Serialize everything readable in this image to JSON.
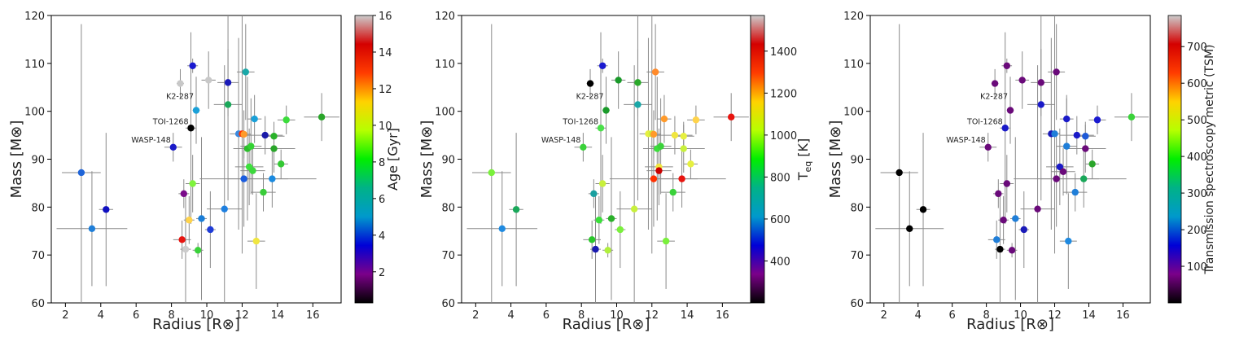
{
  "chart_data": [
    {
      "type": "scatter",
      "xlabel": "Radius [R⊗]",
      "ylabel": "Mass [M⊗]",
      "xlim": [
        1.2,
        17.6
      ],
      "ylim": [
        60,
        120
      ],
      "xticks": [
        2,
        4,
        6,
        8,
        10,
        12,
        14,
        16
      ],
      "yticks": [
        60,
        70,
        80,
        90,
        100,
        110,
        120
      ],
      "grid": false,
      "colorbar": {
        "label": "Age [Gyr]",
        "colormap": "nipy_spectral",
        "range": [
          0.3,
          16
        ],
        "ticks": [
          2,
          4,
          6,
          8,
          10,
          12,
          14,
          16
        ],
        "gradient": [
          "#000000",
          "#7b0089",
          "#0000d6",
          "#0099cc",
          "#00b288",
          "#00ee00",
          "#b6ff00",
          "#ffd200",
          "#ff3c00",
          "#d40000",
          "#cccccc"
        ]
      },
      "annotations": [
        {
          "text": "K2-287",
          "x": 9.4,
          "y": 101.7
        },
        {
          "text": "TOI-1268",
          "x": 9.1,
          "y": 96.5
        },
        {
          "text": "WASP-148",
          "x": 8.1,
          "y": 92.6
        }
      ],
      "points": [
        {
          "x": 2.9,
          "y": 87.2,
          "xerr": 1.1,
          "yerr": 31,
          "color": "#1f64d8"
        },
        {
          "x": 3.5,
          "y": 75.5,
          "xerr": 2.0,
          "yerr": 12,
          "color": "#1f7ed8"
        },
        {
          "x": 4.3,
          "y": 79.5,
          "xerr": 0.4,
          "yerr": 16,
          "color": "#0f0fc0"
        },
        {
          "x": 8.1,
          "y": 92.5,
          "xerr": 0.5,
          "yerr": 3.0,
          "color": "#1a1ac8"
        },
        {
          "x": 8.5,
          "y": 105.8,
          "xerr": 0.2,
          "yerr": 3.0,
          "color": "#c8c8c8"
        },
        {
          "x": 8.6,
          "y": 73.2,
          "xerr": 0.5,
          "yerr": 4.0,
          "color": "#e8140f"
        },
        {
          "x": 8.7,
          "y": 82.8,
          "xerr": 0.3,
          "yerr": 3.0,
          "color": "#7a0a8a"
        },
        {
          "x": 8.8,
          "y": 71.2,
          "xerr": 0.3,
          "yerr": 12,
          "color": "#cccccc"
        },
        {
          "x": 9.0,
          "y": 77.3,
          "xerr": 0.3,
          "yerr": 5.0,
          "color": "#ffd34a"
        },
        {
          "x": 9.1,
          "y": 96.5,
          "xerr": 0.3,
          "yerr": 20,
          "color": "#000000"
        },
        {
          "x": 9.2,
          "y": 84.9,
          "xerr": 0.4,
          "yerr": 6.0,
          "color": "#7ff33c"
        },
        {
          "x": 9.2,
          "y": 109.5,
          "xerr": 0.3,
          "yerr": 1.5,
          "color": "#1a1ad0"
        },
        {
          "x": 9.4,
          "y": 100.2,
          "xerr": 0.2,
          "yerr": 7.0,
          "color": "#1aa0d8"
        },
        {
          "x": 9.5,
          "y": 71.0,
          "xerr": 0.3,
          "yerr": 1.5,
          "color": "#3ad23a"
        },
        {
          "x": 9.7,
          "y": 77.6,
          "xerr": 0.3,
          "yerr": 17,
          "color": "#1a7ed8"
        },
        {
          "x": 10.1,
          "y": 106.5,
          "xerr": 0.4,
          "yerr": 6.0,
          "color": "#c8c8c8"
        },
        {
          "x": 10.2,
          "y": 75.3,
          "xerr": 0.3,
          "yerr": 8.0,
          "color": "#1f3cd8"
        },
        {
          "x": 11.0,
          "y": 79.6,
          "xerr": 1.0,
          "yerr": 30,
          "color": "#1f80e0"
        },
        {
          "x": 11.2,
          "y": 106.0,
          "xerr": 0.6,
          "yerr": 7.0,
          "color": "#1a1ab8"
        },
        {
          "x": 11.2,
          "y": 101.4,
          "xerr": 0.8,
          "yerr": 20,
          "color": "#1aa85a"
        },
        {
          "x": 11.8,
          "y": 95.3,
          "xerr": 0.5,
          "yerr": 20,
          "color": "#3a8ae0"
        },
        {
          "x": 12.0,
          "y": 95.3,
          "xerr": 0.3,
          "yerr": 25,
          "color": "#ff3000"
        },
        {
          "x": 12.1,
          "y": 95.2,
          "xerr": 0.4,
          "yerr": 5.0,
          "color": "#ff9a2a"
        },
        {
          "x": 12.1,
          "y": 85.9,
          "xerr": 2.5,
          "yerr": 10,
          "color": "#1a5ce0"
        },
        {
          "x": 12.2,
          "y": 108.2,
          "xerr": 0.5,
          "yerr": 10,
          "color": "#1aa8a8"
        },
        {
          "x": 12.3,
          "y": 92.2,
          "xerr": 0.8,
          "yerr": 15,
          "color": "#2abe2a"
        },
        {
          "x": 12.4,
          "y": 88.4,
          "xerr": 0.8,
          "yerr": 8.0,
          "color": "#3ce13c"
        },
        {
          "x": 12.5,
          "y": 92.7,
          "xerr": 0.6,
          "yerr": 10,
          "color": "#33d233"
        },
        {
          "x": 12.6,
          "y": 87.6,
          "xerr": 0.7,
          "yerr": 5.0,
          "color": "#3cd83c"
        },
        {
          "x": 12.7,
          "y": 98.4,
          "xerr": 0.4,
          "yerr": 5.0,
          "color": "#1aa0d8"
        },
        {
          "x": 12.8,
          "y": 72.9,
          "xerr": 0.5,
          "yerr": 10,
          "color": "#f0e640"
        },
        {
          "x": 13.2,
          "y": 83.1,
          "xerr": 0.7,
          "yerr": 4.0,
          "color": "#3acd3a"
        },
        {
          "x": 13.3,
          "y": 95.0,
          "xerr": 1.0,
          "yerr": 4.0,
          "color": "#1a1aa8"
        },
        {
          "x": 13.7,
          "y": 85.9,
          "xerr": 2.5,
          "yerr": 6.0,
          "color": "#1a8ae0"
        },
        {
          "x": 13.8,
          "y": 94.8,
          "xerr": 0.6,
          "yerr": 3.0,
          "color": "#2ab22a"
        },
        {
          "x": 13.8,
          "y": 92.2,
          "xerr": 1.2,
          "yerr": 5.0,
          "color": "#2aa52a"
        },
        {
          "x": 14.2,
          "y": 89.0,
          "xerr": 0.4,
          "yerr": 3.0,
          "color": "#33c833"
        },
        {
          "x": 14.5,
          "y": 98.2,
          "xerr": 0.5,
          "yerr": 3.0,
          "color": "#3cdc3c"
        },
        {
          "x": 16.5,
          "y": 98.8,
          "xerr": 1.0,
          "yerr": 5.0,
          "color": "#2aa52a"
        }
      ]
    },
    {
      "type": "scatter",
      "xlabel": "Radius [R⊗]",
      "ylabel": "Mass [M⊗]",
      "xlim": [
        1.2,
        17.6
      ],
      "ylim": [
        60,
        120
      ],
      "xticks": [
        2,
        4,
        6,
        8,
        10,
        12,
        14,
        16
      ],
      "yticks": [
        60,
        70,
        80,
        90,
        100,
        110,
        120
      ],
      "grid": false,
      "colorbar": {
        "label": "T",
        "label_sub": "eq",
        "label_unit": " [K]",
        "colormap": "nipy_spectral",
        "range": [
          200,
          1570
        ],
        "ticks": [
          400,
          600,
          800,
          1000,
          1200,
          1400
        ],
        "gradient": [
          "#000000",
          "#7b0089",
          "#0000d6",
          "#0099cc",
          "#00b288",
          "#00ee00",
          "#b6ff00",
          "#ffd200",
          "#ff3c00",
          "#d40000",
          "#cccccc"
        ]
      },
      "annotations": [
        {
          "text": "K2-287",
          "x": 9.4,
          "y": 101.7
        },
        {
          "text": "TOI-1268",
          "x": 9.1,
          "y": 96.5
        },
        {
          "text": "WASP-148",
          "x": 8.1,
          "y": 92.6
        }
      ],
      "points": [
        {
          "x": 2.9,
          "y": 87.2,
          "xerr": 1.1,
          "yerr": 31,
          "color": "#7af03c"
        },
        {
          "x": 3.5,
          "y": 75.5,
          "xerr": 2.0,
          "yerr": 12,
          "color": "#1f8ae0"
        },
        {
          "x": 4.3,
          "y": 79.5,
          "xerr": 0.4,
          "yerr": 16,
          "color": "#1aa85a"
        },
        {
          "x": 8.1,
          "y": 92.5,
          "xerr": 0.5,
          "yerr": 3.0,
          "color": "#3ad23a"
        },
        {
          "x": 8.5,
          "y": 105.8,
          "xerr": 0.2,
          "yerr": 3.0,
          "color": "#000000"
        },
        {
          "x": 8.6,
          "y": 73.2,
          "xerr": 0.5,
          "yerr": 4.0,
          "color": "#2ac82a"
        },
        {
          "x": 8.7,
          "y": 82.8,
          "xerr": 0.3,
          "yerr": 3.0,
          "color": "#1aa0a0"
        },
        {
          "x": 8.8,
          "y": 71.2,
          "xerr": 0.3,
          "yerr": 12,
          "color": "#1a1ab0"
        },
        {
          "x": 9.0,
          "y": 77.3,
          "xerr": 0.3,
          "yerr": 5.0,
          "color": "#3ae03a"
        },
        {
          "x": 9.1,
          "y": 96.5,
          "xerr": 0.3,
          "yerr": 20,
          "color": "#4ae04a"
        },
        {
          "x": 9.2,
          "y": 84.9,
          "xerr": 0.4,
          "yerr": 6.0,
          "color": "#c8f03c"
        },
        {
          "x": 9.2,
          "y": 109.5,
          "xerr": 0.3,
          "yerr": 1.5,
          "color": "#1a1ad0"
        },
        {
          "x": 9.4,
          "y": 100.2,
          "xerr": 0.2,
          "yerr": 7.0,
          "color": "#1a9a2a"
        },
        {
          "x": 9.5,
          "y": 71.0,
          "xerr": 0.3,
          "yerr": 1.5,
          "color": "#b0f03c"
        },
        {
          "x": 9.7,
          "y": 77.6,
          "xerr": 0.3,
          "yerr": 17,
          "color": "#2ab02a"
        },
        {
          "x": 10.1,
          "y": 106.5,
          "xerr": 0.4,
          "yerr": 6.0,
          "color": "#1a9a2a"
        },
        {
          "x": 10.2,
          "y": 75.3,
          "xerr": 0.3,
          "yerr": 8.0,
          "color": "#7af03c"
        },
        {
          "x": 11.0,
          "y": 79.6,
          "xerr": 1.0,
          "yerr": 30,
          "color": "#c8f03c"
        },
        {
          "x": 11.2,
          "y": 106.0,
          "xerr": 0.6,
          "yerr": 7.0,
          "color": "#2aa82a"
        },
        {
          "x": 11.2,
          "y": 101.4,
          "xerr": 0.8,
          "yerr": 20,
          "color": "#1aa8a8"
        },
        {
          "x": 11.8,
          "y": 95.3,
          "xerr": 0.5,
          "yerr": 20,
          "color": "#e6f040"
        },
        {
          "x": 12.0,
          "y": 95.3,
          "xerr": 0.3,
          "yerr": 25,
          "color": "#c8f03c"
        },
        {
          "x": 12.1,
          "y": 95.2,
          "xerr": 0.4,
          "yerr": 5.0,
          "color": "#ff9a2a"
        },
        {
          "x": 12.1,
          "y": 85.9,
          "xerr": 2.5,
          "yerr": 10,
          "color": "#ff3000"
        },
        {
          "x": 12.2,
          "y": 108.2,
          "xerr": 0.5,
          "yerr": 10,
          "color": "#ff8a2a"
        },
        {
          "x": 12.3,
          "y": 92.2,
          "xerr": 0.8,
          "yerr": 15,
          "color": "#3ae03a"
        },
        {
          "x": 12.4,
          "y": 88.4,
          "xerr": 0.8,
          "yerr": 8.0,
          "color": "#f0e640"
        },
        {
          "x": 12.5,
          "y": 92.7,
          "xerr": 0.6,
          "yerr": 10,
          "color": "#3ad23a"
        },
        {
          "x": 12.4,
          "y": 87.6,
          "xerr": 0.7,
          "yerr": 5.0,
          "color": "#cc0000"
        },
        {
          "x": 12.7,
          "y": 98.4,
          "xerr": 0.4,
          "yerr": 5.0,
          "color": "#ff9a2a"
        },
        {
          "x": 12.8,
          "y": 72.9,
          "xerr": 0.5,
          "yerr": 10,
          "color": "#7af03c"
        },
        {
          "x": 13.2,
          "y": 83.1,
          "xerr": 0.7,
          "yerr": 4.0,
          "color": "#3ad23a"
        },
        {
          "x": 13.3,
          "y": 95.0,
          "xerr": 1.0,
          "yerr": 4.0,
          "color": "#f0e640"
        },
        {
          "x": 13.7,
          "y": 85.9,
          "xerr": 2.5,
          "yerr": 6.0,
          "color": "#e8140f"
        },
        {
          "x": 13.8,
          "y": 94.8,
          "xerr": 0.6,
          "yerr": 3.0,
          "color": "#e6f040"
        },
        {
          "x": 13.8,
          "y": 92.2,
          "xerr": 1.2,
          "yerr": 5.0,
          "color": "#c8f03c"
        },
        {
          "x": 14.2,
          "y": 89.0,
          "xerr": 0.4,
          "yerr": 3.0,
          "color": "#e6f040"
        },
        {
          "x": 14.5,
          "y": 98.2,
          "xerr": 0.5,
          "yerr": 3.0,
          "color": "#ffd34a"
        },
        {
          "x": 16.5,
          "y": 98.8,
          "xerr": 1.0,
          "yerr": 5.0,
          "color": "#e8140f"
        }
      ]
    },
    {
      "type": "scatter",
      "xlabel": "Radius [R⊗]",
      "ylabel": "Mass [M⊗]",
      "xlim": [
        1.2,
        17.6
      ],
      "ylim": [
        60,
        120
      ],
      "xticks": [
        2,
        4,
        6,
        8,
        10,
        12,
        14,
        16
      ],
      "yticks": [
        60,
        70,
        80,
        90,
        100,
        110,
        120
      ],
      "grid": false,
      "colorbar": {
        "label": "Transmission spectroscopy metric (TSM)",
        "colormap": "nipy_spectral",
        "range": [
          0,
          785
        ],
        "ticks": [
          100,
          200,
          300,
          400,
          500,
          600,
          700
        ],
        "gradient": [
          "#000000",
          "#7b0089",
          "#0000d6",
          "#0099cc",
          "#00b288",
          "#00ee00",
          "#b6ff00",
          "#ffd200",
          "#ff3c00",
          "#d40000",
          "#cccccc"
        ]
      },
      "annotations": [
        {
          "text": "K2-287",
          "x": 9.4,
          "y": 101.7
        },
        {
          "text": "TOI-1268",
          "x": 9.1,
          "y": 96.5
        },
        {
          "text": "WASP-148",
          "x": 8.1,
          "y": 92.6
        }
      ],
      "points": [
        {
          "x": 2.9,
          "y": 87.2,
          "xerr": 1.1,
          "yerr": 31,
          "color": "#000000"
        },
        {
          "x": 3.5,
          "y": 75.5,
          "xerr": 2.0,
          "yerr": 12,
          "color": "#000000"
        },
        {
          "x": 4.3,
          "y": 79.5,
          "xerr": 0.4,
          "yerr": 16,
          "color": "#000000"
        },
        {
          "x": 8.1,
          "y": 92.5,
          "xerr": 0.5,
          "yerr": 3.0,
          "color": "#6a0a7a"
        },
        {
          "x": 8.5,
          "y": 105.8,
          "xerr": 0.2,
          "yerr": 3.0,
          "color": "#6a0a7a"
        },
        {
          "x": 8.6,
          "y": 73.2,
          "xerr": 0.5,
          "yerr": 4.0,
          "color": "#1f7ed8"
        },
        {
          "x": 8.7,
          "y": 82.8,
          "xerr": 0.3,
          "yerr": 3.0,
          "color": "#6a0a7a"
        },
        {
          "x": 8.8,
          "y": 71.2,
          "xerr": 0.3,
          "yerr": 12,
          "color": "#000000"
        },
        {
          "x": 9.0,
          "y": 77.3,
          "xerr": 0.3,
          "yerr": 5.0,
          "color": "#6a0a7a"
        },
        {
          "x": 9.1,
          "y": 96.5,
          "xerr": 0.3,
          "yerr": 20,
          "color": "#1a1ac8"
        },
        {
          "x": 9.2,
          "y": 84.9,
          "xerr": 0.4,
          "yerr": 6.0,
          "color": "#6a0a7a"
        },
        {
          "x": 9.2,
          "y": 109.5,
          "xerr": 0.3,
          "yerr": 1.5,
          "color": "#6a0a7a"
        },
        {
          "x": 9.4,
          "y": 100.2,
          "xerr": 0.2,
          "yerr": 7.0,
          "color": "#6a0a7a"
        },
        {
          "x": 9.5,
          "y": 71.0,
          "xerr": 0.3,
          "yerr": 1.5,
          "color": "#6a0a7a"
        },
        {
          "x": 9.7,
          "y": 77.6,
          "xerr": 0.3,
          "yerr": 17,
          "color": "#1f7ed8"
        },
        {
          "x": 10.1,
          "y": 106.5,
          "xerr": 0.4,
          "yerr": 6.0,
          "color": "#6a0a7a"
        },
        {
          "x": 10.2,
          "y": 75.3,
          "xerr": 0.3,
          "yerr": 8.0,
          "color": "#1a1ab8"
        },
        {
          "x": 11.0,
          "y": 79.6,
          "xerr": 1.0,
          "yerr": 30,
          "color": "#6a0a7a"
        },
        {
          "x": 11.2,
          "y": 106.0,
          "xerr": 0.6,
          "yerr": 7.0,
          "color": "#6a0a7a"
        },
        {
          "x": 11.2,
          "y": 101.4,
          "xerr": 0.8,
          "yerr": 20,
          "color": "#1a1ac8"
        },
        {
          "x": 11.8,
          "y": 95.3,
          "xerr": 0.5,
          "yerr": 20,
          "color": "#1a1ab8"
        },
        {
          "x": 12.0,
          "y": 95.3,
          "xerr": 0.3,
          "yerr": 25,
          "color": "#1f7ed8"
        },
        {
          "x": 12.1,
          "y": 108.2,
          "xerr": 0.5,
          "yerr": 10,
          "color": "#6a0a7a"
        },
        {
          "x": 12.1,
          "y": 85.9,
          "xerr": 2.5,
          "yerr": 10,
          "color": "#6a0a7a"
        },
        {
          "x": 12.3,
          "y": 88.4,
          "xerr": 0.8,
          "yerr": 8.0,
          "color": "#1a1ac8"
        },
        {
          "x": 12.5,
          "y": 87.4,
          "xerr": 0.7,
          "yerr": 5.0,
          "color": "#6a0a7a"
        },
        {
          "x": 12.7,
          "y": 98.4,
          "xerr": 0.4,
          "yerr": 5.0,
          "color": "#1a1ac8"
        },
        {
          "x": 12.7,
          "y": 92.7,
          "xerr": 0.6,
          "yerr": 10,
          "color": "#1f7ed8"
        },
        {
          "x": 12.8,
          "y": 72.9,
          "xerr": 0.5,
          "yerr": 10,
          "color": "#1f8ae0"
        },
        {
          "x": 13.2,
          "y": 83.1,
          "xerr": 0.7,
          "yerr": 4.0,
          "color": "#1f7ed8"
        },
        {
          "x": 13.3,
          "y": 95.0,
          "xerr": 1.0,
          "yerr": 4.0,
          "color": "#1a1ac8"
        },
        {
          "x": 13.7,
          "y": 85.9,
          "xerr": 2.5,
          "yerr": 6.0,
          "color": "#1aa85a"
        },
        {
          "x": 13.8,
          "y": 94.8,
          "xerr": 0.6,
          "yerr": 3.0,
          "color": "#1f5ad8"
        },
        {
          "x": 13.8,
          "y": 92.2,
          "xerr": 1.2,
          "yerr": 5.0,
          "color": "#6a0a7a"
        },
        {
          "x": 14.2,
          "y": 89.0,
          "xerr": 0.4,
          "yerr": 3.0,
          "color": "#2aa52a"
        },
        {
          "x": 14.5,
          "y": 98.2,
          "xerr": 0.5,
          "yerr": 3.0,
          "color": "#1a1ad0"
        },
        {
          "x": 16.5,
          "y": 98.8,
          "xerr": 1.0,
          "yerr": 5.0,
          "color": "#3ad23a"
        }
      ]
    }
  ]
}
